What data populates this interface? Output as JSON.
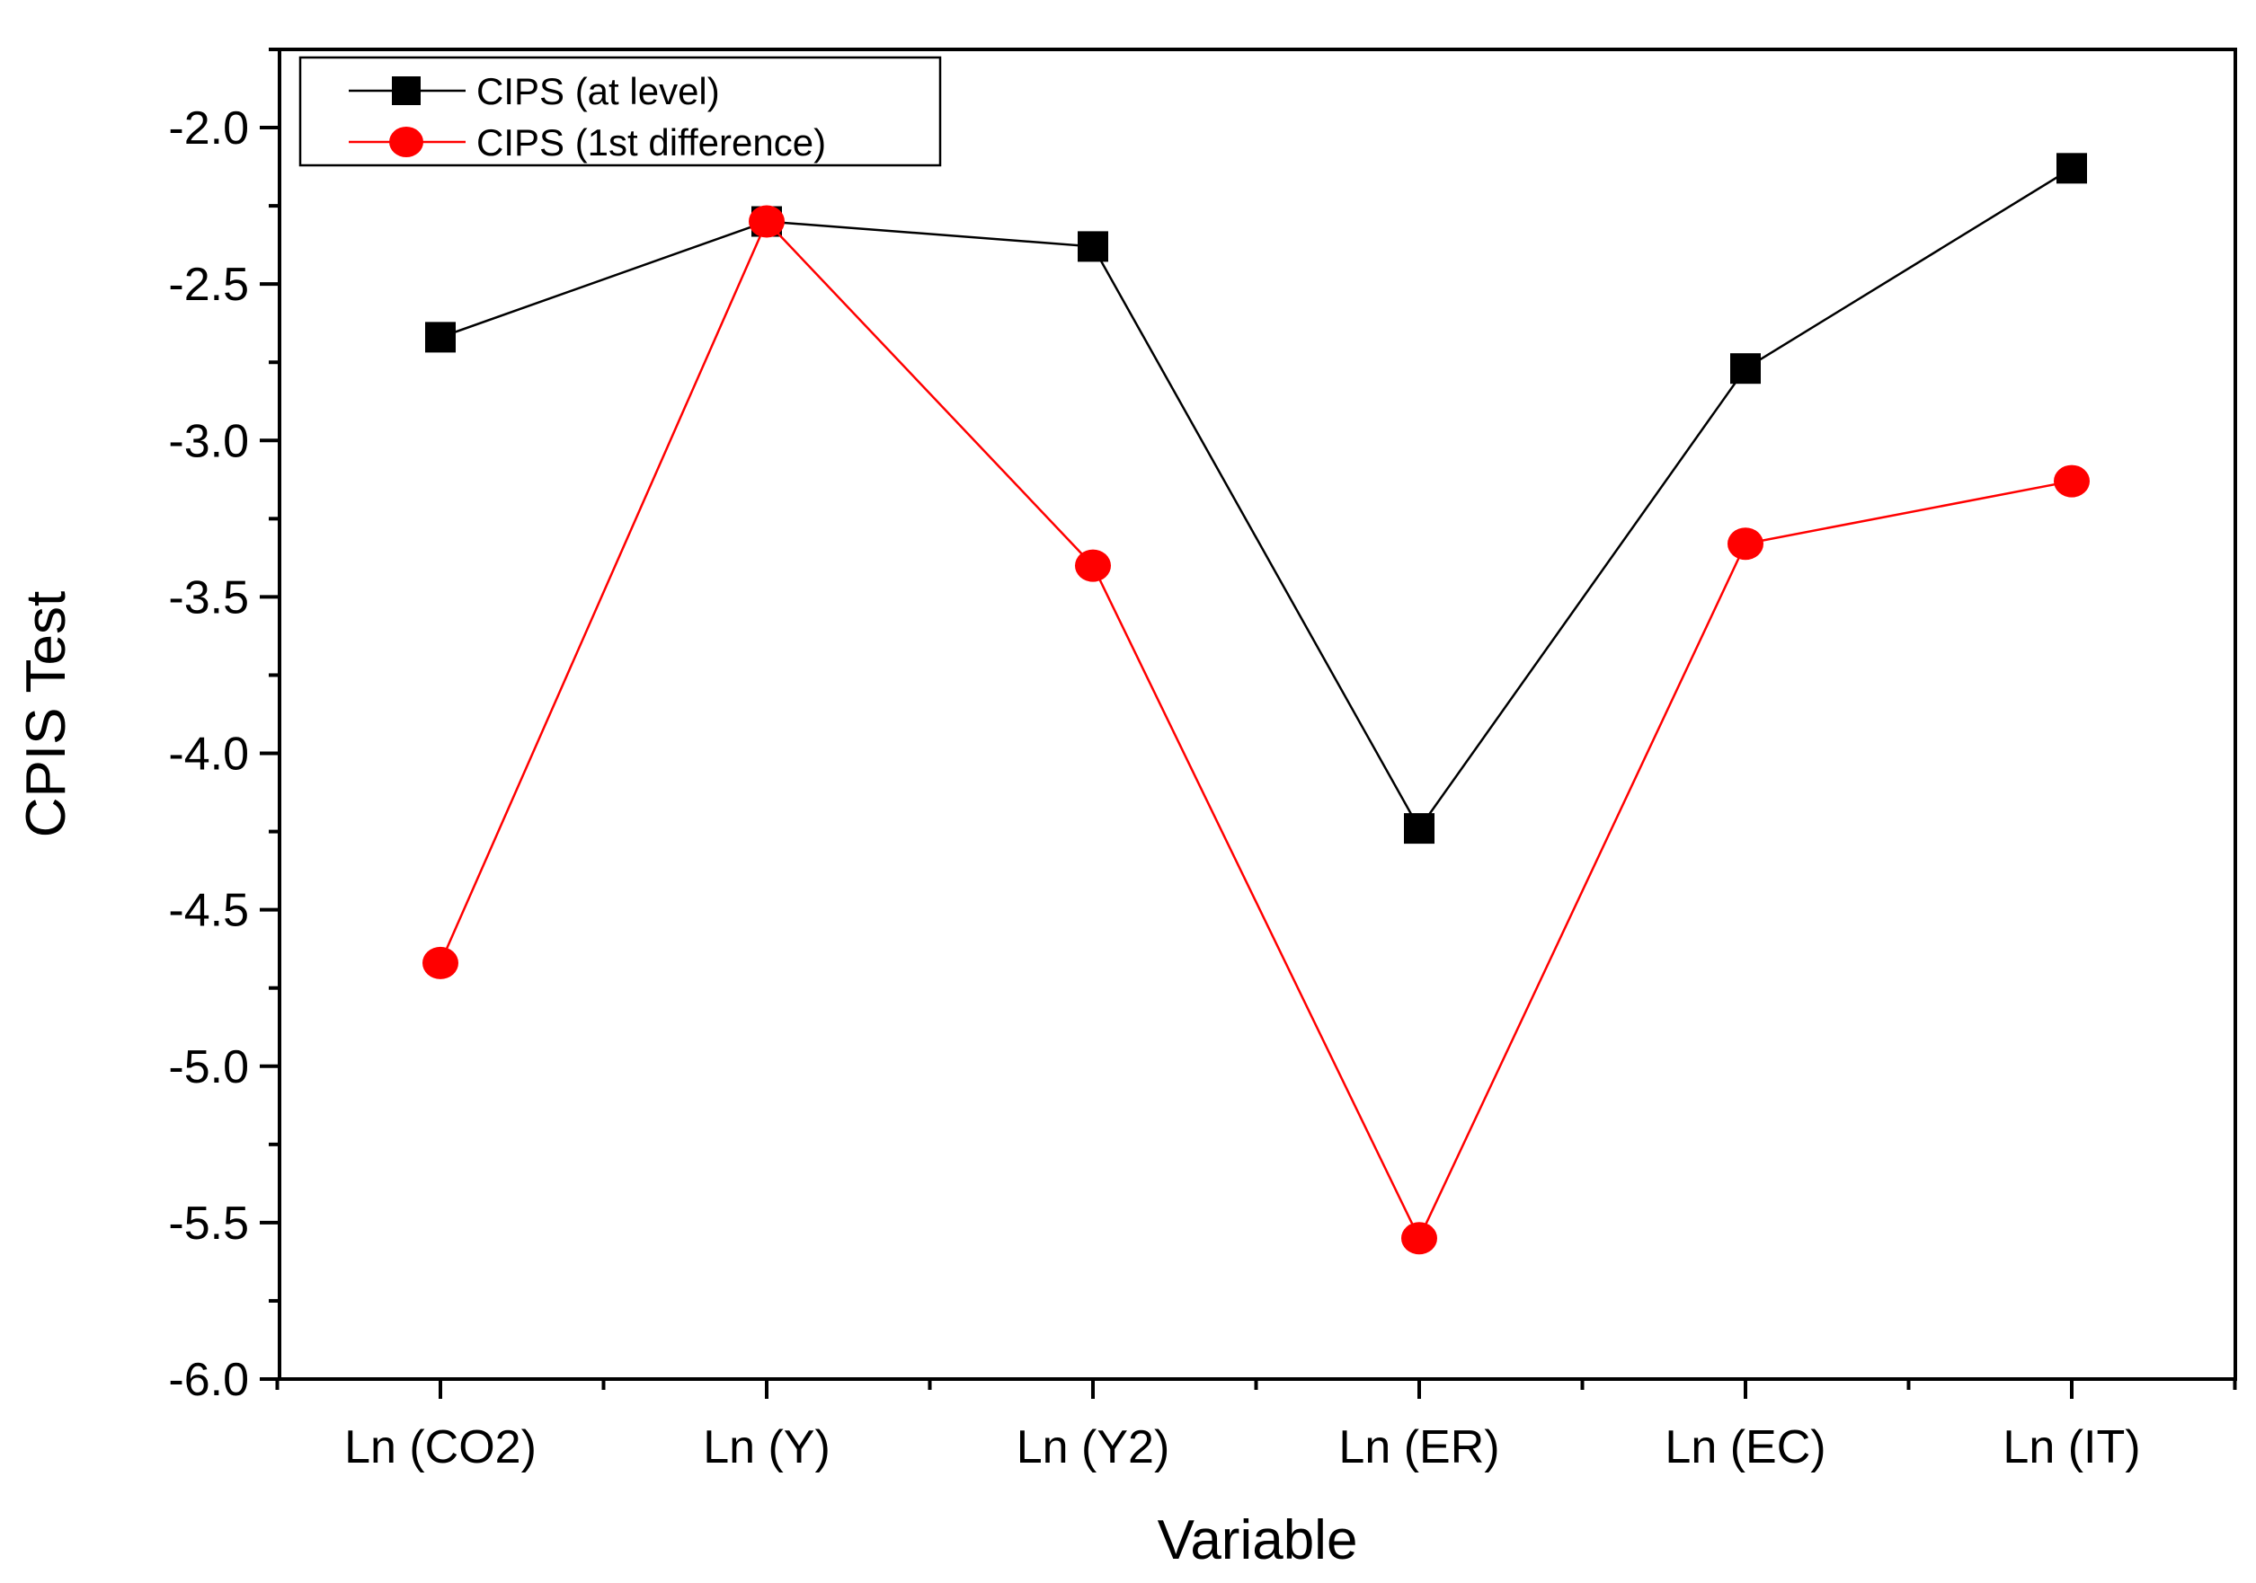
{
  "chart_data": {
    "type": "line",
    "title": "",
    "xlabel": "Variable",
    "ylabel": "CPIS Test",
    "categories": [
      "Ln (CO2)",
      "Ln (Y)",
      "Ln (Y2)",
      "Ln (ER)",
      "Ln (EC)",
      "Ln (IT)"
    ],
    "ylim": [
      -6.0,
      -1.75
    ],
    "yticks": [
      -6.0,
      -5.5,
      -5.0,
      -4.5,
      -4.0,
      -3.5,
      -3.0,
      -2.5,
      -2.0
    ],
    "ytick_labels": [
      "-6.0",
      "-5.5",
      "-5.0",
      "-4.5",
      "-4.0",
      "-3.5",
      "-3.0",
      "-2.5",
      "-2.0"
    ],
    "grid": false,
    "legend_position": "top-left",
    "series": [
      {
        "name": "CIPS (at level)",
        "color": "#000000",
        "marker": "square",
        "values": [
          -2.67,
          -2.3,
          -2.38,
          -4.24,
          -2.77,
          -2.13
        ]
      },
      {
        "name": "CIPS (1st difference)",
        "color": "#ff0000",
        "marker": "circle",
        "values": [
          -4.67,
          -2.3,
          -3.4,
          -5.55,
          -3.33,
          -3.13
        ]
      }
    ]
  }
}
